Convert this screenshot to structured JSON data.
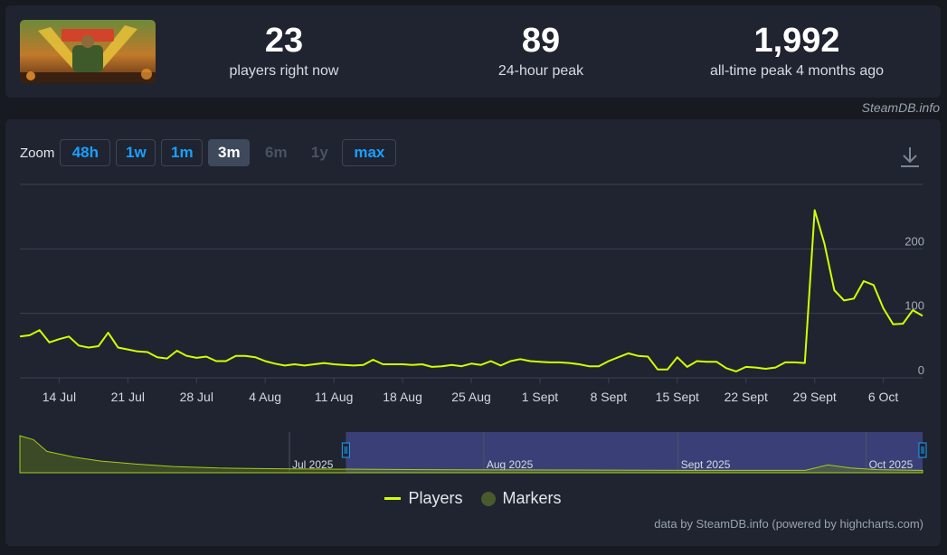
{
  "stats": [
    {
      "value": "23",
      "label": "players right now"
    },
    {
      "value": "89",
      "label": "24-hour peak"
    },
    {
      "value": "1,992",
      "label": "all-time peak 4 months ago"
    }
  ],
  "credit_top": "SteamDB.info",
  "zoom": {
    "label": "Zoom",
    "buttons": [
      {
        "label": "48h",
        "state": "normal"
      },
      {
        "label": "1w",
        "state": "normal"
      },
      {
        "label": "1m",
        "state": "normal"
      },
      {
        "label": "3m",
        "state": "active"
      },
      {
        "label": "6m",
        "state": "disabled"
      },
      {
        "label": "1y",
        "state": "disabled"
      },
      {
        "label": "max",
        "state": "normal"
      }
    ]
  },
  "icons": {
    "download": "download-icon",
    "game": "game-thumbnail"
  },
  "colors": {
    "series": "#d4ff00",
    "accent": "#1a9fff",
    "navigator_selection": "#3d4480",
    "markers": "#4a5a2c"
  },
  "legend": {
    "players": "Players",
    "markers": "Markers"
  },
  "credit_bottom": "data by SteamDB.info (powered by highcharts.com)",
  "chart_data": {
    "type": "line",
    "title": "",
    "xlabel": "",
    "ylabel": "",
    "ylim": [
      0,
      300
    ],
    "yticks": [
      0,
      100,
      200
    ],
    "grid": true,
    "legend_position": "bottom-center",
    "x_tick_labels": [
      {
        "date": "2025-07-14",
        "label": "14 Jul"
      },
      {
        "date": "2025-07-21",
        "label": "21 Jul"
      },
      {
        "date": "2025-07-28",
        "label": "28 Jul"
      },
      {
        "date": "2025-08-04",
        "label": "4 Aug"
      },
      {
        "date": "2025-08-11",
        "label": "11 Aug"
      },
      {
        "date": "2025-08-18",
        "label": "18 Aug"
      },
      {
        "date": "2025-08-25",
        "label": "25 Aug"
      },
      {
        "date": "2025-09-01",
        "label": "1 Sept"
      },
      {
        "date": "2025-09-08",
        "label": "8 Sept"
      },
      {
        "date": "2025-09-15",
        "label": "15 Sept"
      },
      {
        "date": "2025-09-22",
        "label": "22 Sept"
      },
      {
        "date": "2025-09-29",
        "label": "29 Sept"
      },
      {
        "date": "2025-10-06",
        "label": "6 Oct"
      }
    ],
    "series": [
      {
        "name": "Players",
        "points": [
          [
            "2025-07-10",
            64
          ],
          [
            "2025-07-11",
            66
          ],
          [
            "2025-07-12",
            74
          ],
          [
            "2025-07-13",
            55
          ],
          [
            "2025-07-14",
            60
          ],
          [
            "2025-07-15",
            64
          ],
          [
            "2025-07-16",
            50
          ],
          [
            "2025-07-17",
            47
          ],
          [
            "2025-07-18",
            49
          ],
          [
            "2025-07-19",
            70
          ],
          [
            "2025-07-20",
            47
          ],
          [
            "2025-07-21",
            44
          ],
          [
            "2025-07-22",
            41
          ],
          [
            "2025-07-23",
            40
          ],
          [
            "2025-07-24",
            32
          ],
          [
            "2025-07-25",
            30
          ],
          [
            "2025-07-26",
            42
          ],
          [
            "2025-07-27",
            34
          ],
          [
            "2025-07-28",
            31
          ],
          [
            "2025-07-29",
            33
          ],
          [
            "2025-07-30",
            26
          ],
          [
            "2025-07-31",
            26
          ],
          [
            "2025-08-01",
            34
          ],
          [
            "2025-08-02",
            34
          ],
          [
            "2025-08-03",
            32
          ],
          [
            "2025-08-04",
            26
          ],
          [
            "2025-08-05",
            22
          ],
          [
            "2025-08-06",
            19
          ],
          [
            "2025-08-07",
            21
          ],
          [
            "2025-08-08",
            19
          ],
          [
            "2025-08-09",
            21
          ],
          [
            "2025-08-10",
            23
          ],
          [
            "2025-08-11",
            21
          ],
          [
            "2025-08-12",
            20
          ],
          [
            "2025-08-13",
            19
          ],
          [
            "2025-08-14",
            20
          ],
          [
            "2025-08-15",
            28
          ],
          [
            "2025-08-16",
            21
          ],
          [
            "2025-08-17",
            21
          ],
          [
            "2025-08-18",
            21
          ],
          [
            "2025-08-19",
            20
          ],
          [
            "2025-08-20",
            21
          ],
          [
            "2025-08-21",
            17
          ],
          [
            "2025-08-22",
            18
          ],
          [
            "2025-08-23",
            20
          ],
          [
            "2025-08-24",
            18
          ],
          [
            "2025-08-25",
            22
          ],
          [
            "2025-08-26",
            20
          ],
          [
            "2025-08-27",
            26
          ],
          [
            "2025-08-28",
            19
          ],
          [
            "2025-08-29",
            26
          ],
          [
            "2025-08-30",
            29
          ],
          [
            "2025-08-31",
            26
          ],
          [
            "2025-09-01",
            25
          ],
          [
            "2025-09-02",
            24
          ],
          [
            "2025-09-03",
            24
          ],
          [
            "2025-09-04",
            23
          ],
          [
            "2025-09-05",
            21
          ],
          [
            "2025-09-06",
            18
          ],
          [
            "2025-09-07",
            18
          ],
          [
            "2025-09-08",
            26
          ],
          [
            "2025-09-09",
            32
          ],
          [
            "2025-09-10",
            38
          ],
          [
            "2025-09-11",
            34
          ],
          [
            "2025-09-12",
            33
          ],
          [
            "2025-09-13",
            13
          ],
          [
            "2025-09-14",
            13
          ],
          [
            "2025-09-15",
            32
          ],
          [
            "2025-09-16",
            17
          ],
          [
            "2025-09-17",
            26
          ],
          [
            "2025-09-18",
            25
          ],
          [
            "2025-09-19",
            25
          ],
          [
            "2025-09-20",
            15
          ],
          [
            "2025-09-21",
            10
          ],
          [
            "2025-09-22",
            17
          ],
          [
            "2025-09-23",
            16
          ],
          [
            "2025-09-24",
            14
          ],
          [
            "2025-09-25",
            16
          ],
          [
            "2025-09-26",
            24
          ],
          [
            "2025-09-27",
            24
          ],
          [
            "2025-09-28",
            23
          ],
          [
            "2025-09-29",
            260
          ],
          [
            "2025-09-30",
            208
          ],
          [
            "2025-10-01",
            136
          ],
          [
            "2025-10-02",
            120
          ],
          [
            "2025-10-03",
            123
          ],
          [
            "2025-10-04",
            150
          ],
          [
            "2025-10-05",
            144
          ],
          [
            "2025-10-06",
            108
          ],
          [
            "2025-10-07",
            83
          ],
          [
            "2025-10-08",
            84
          ],
          [
            "2025-10-09",
            105
          ],
          [
            "2025-10-10",
            96
          ]
        ]
      }
    ],
    "navigator": {
      "labels": [
        {
          "date": "2025-07-01",
          "label": "Jul 2025"
        },
        {
          "date": "2025-08-01",
          "label": "Aug 2025"
        },
        {
          "date": "2025-09-01",
          "label": "Sept 2025"
        },
        {
          "date": "2025-10-01",
          "label": "Oct 2025"
        }
      ],
      "selection": {
        "from": "2025-07-10",
        "to": "2025-10-10"
      }
    }
  }
}
